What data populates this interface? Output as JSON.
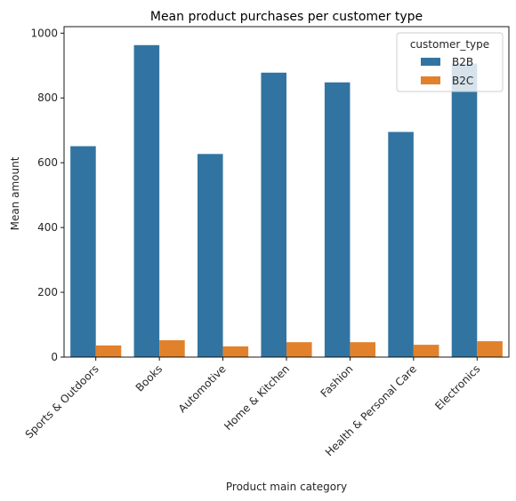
{
  "chart_data": {
    "type": "bar",
    "title": "Mean product purchases per customer type",
    "xlabel": "Product main category",
    "ylabel": "Mean amount",
    "categories": [
      "Sports & Outdoors",
      "Books",
      "Automotive",
      "Home & Kitchen",
      "Fashion",
      "Health & Personal Care",
      "Electronics"
    ],
    "series": [
      {
        "name": "B2B",
        "values": [
          651,
          963,
          627,
          878,
          848,
          695,
          906
        ],
        "color": "#3274a1"
      },
      {
        "name": "B2C",
        "values": [
          36,
          52,
          33,
          46,
          46,
          38,
          49
        ],
        "color": "#e1812c"
      }
    ],
    "ylim": [
      0,
      1020
    ],
    "yticks": [
      0,
      200,
      400,
      600,
      800,
      1000
    ],
    "grid": false,
    "legend": {
      "title": "customer_type",
      "placement": "top-right"
    }
  }
}
